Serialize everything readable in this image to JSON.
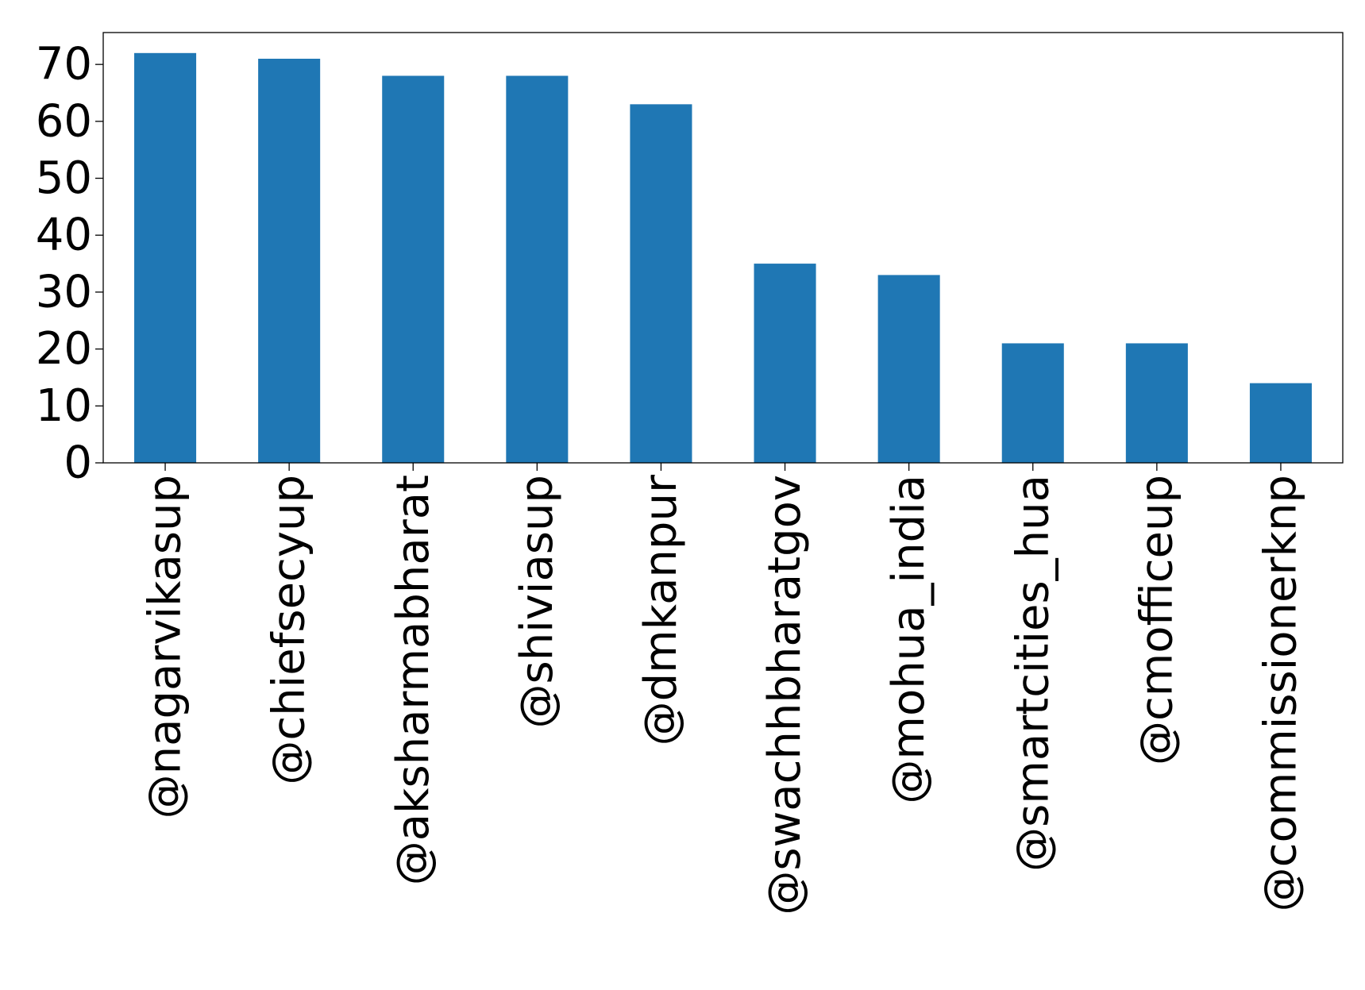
{
  "chart_data": {
    "type": "bar",
    "title": "",
    "xlabel": "",
    "ylabel": "",
    "categories": [
      "@nagarvikasup",
      "@chiefsecyup",
      "@aksharmabharat",
      "@shiviasup",
      "@dmkanpur",
      "@swachhbharatgov",
      "@mohua_india",
      "@smartcities_hua",
      "@cmofficeup",
      "@commissionerknp"
    ],
    "values": [
      72,
      71,
      68,
      68,
      63,
      35,
      33,
      21,
      21,
      14
    ],
    "ylim": [
      0,
      75.6
    ],
    "yticks": [
      0,
      10,
      20,
      30,
      40,
      50,
      60,
      70
    ],
    "grid": false,
    "legend": "none",
    "bar_color": "#1f77b4",
    "x_tick_rotation": "vertical"
  }
}
